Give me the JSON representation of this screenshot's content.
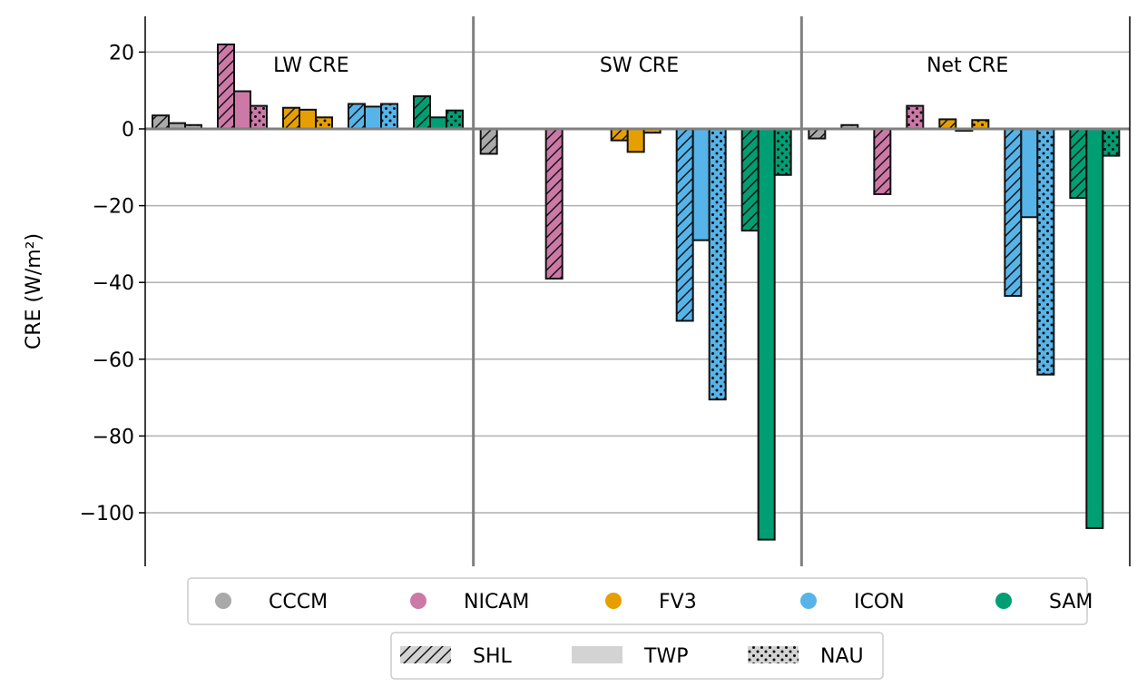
{
  "chart_data": {
    "type": "bar",
    "ylabel": "CRE (W/m²)",
    "ylim": [
      -113,
      29
    ],
    "yticks": [
      20,
      0,
      -20,
      -40,
      -60,
      -80,
      -100
    ],
    "grid": "horizontal",
    "panels": [
      "LW CRE",
      "SW CRE",
      "Net CRE"
    ],
    "regions": [
      "SHL",
      "TWP",
      "NAU"
    ],
    "region_patterns": {
      "SHL": "hatch",
      "TWP": "solid",
      "NAU": "dots"
    },
    "models": [
      {
        "name": "CCCM",
        "color": "#a9a9a9"
      },
      {
        "name": "NICAM",
        "color": "#cc79a7"
      },
      {
        "name": "FV3",
        "color": "#e69f00"
      },
      {
        "name": "ICON",
        "color": "#56b4e9"
      },
      {
        "name": "SAM",
        "color": "#009e73"
      }
    ],
    "values": {
      "LW CRE": {
        "CCCM": [
          3.5,
          1.5,
          1.0
        ],
        "NICAM": [
          22.0,
          9.8,
          6.0
        ],
        "FV3": [
          5.5,
          5.0,
          3.0
        ],
        "ICON": [
          6.5,
          5.8,
          6.5
        ],
        "SAM": [
          8.5,
          3.0,
          4.8
        ]
      },
      "SW CRE": {
        "CCCM": [
          -6.5,
          0,
          0
        ],
        "NICAM": [
          -39.0,
          0,
          0
        ],
        "FV3": [
          -3.0,
          -6.0,
          -1.0
        ],
        "ICON": [
          -50.0,
          -29.0,
          -70.5
        ],
        "SAM": [
          -26.5,
          -107.0,
          -12.0
        ]
      },
      "Net CRE": {
        "CCCM": [
          -2.5,
          0,
          1.0
        ],
        "NICAM": [
          -17.0,
          0,
          6.0
        ],
        "FV3": [
          2.5,
          -0.5,
          2.3
        ],
        "ICON": [
          -43.5,
          -23.0,
          -64.0
        ],
        "SAM": [
          -18.0,
          -104.0,
          -7.0
        ]
      }
    },
    "legend_placement": "bottom"
  }
}
